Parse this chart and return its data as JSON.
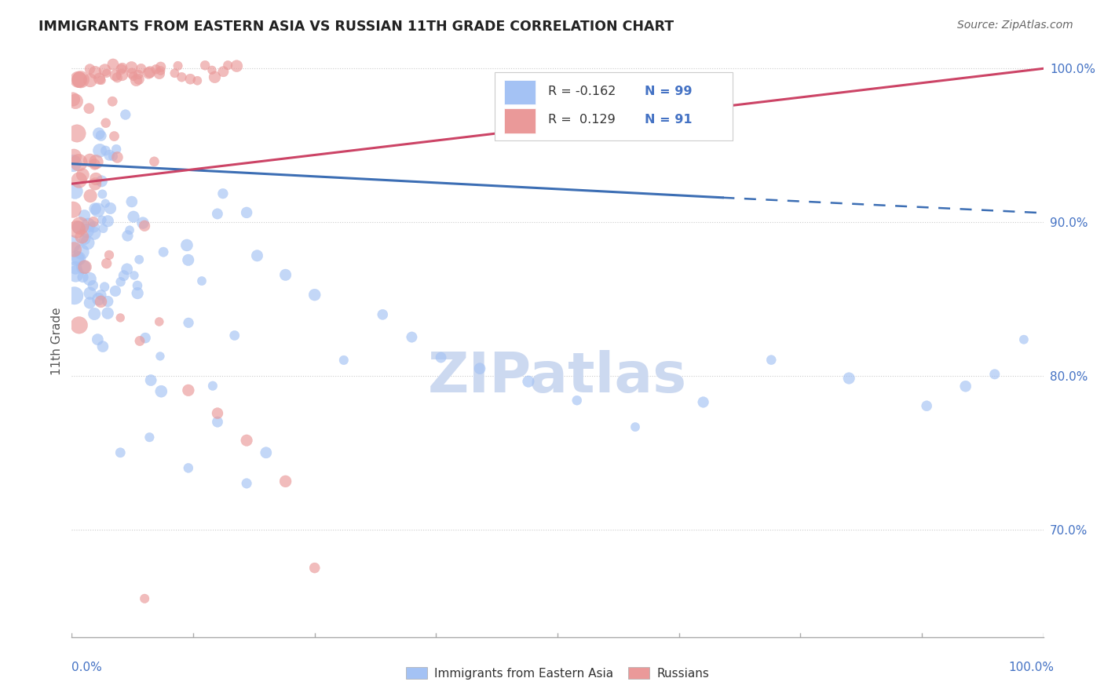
{
  "title": "IMMIGRANTS FROM EASTERN ASIA VS RUSSIAN 11TH GRADE CORRELATION CHART",
  "source": "Source: ZipAtlas.com",
  "ylabel": "11th Grade",
  "legend_r_blue": "-0.162",
  "legend_n_blue": "99",
  "legend_r_pink": "0.129",
  "legend_n_pink": "91",
  "legend_label_blue": "Immigrants from Eastern Asia",
  "legend_label_pink": "Russians",
  "blue_color": "#a4c2f4",
  "pink_color": "#ea9999",
  "blue_line_color": "#3c6eb4",
  "pink_line_color": "#cc4466",
  "blue_line_start_x": 0.0,
  "blue_line_start_y": 93.8,
  "blue_line_end_x": 67.0,
  "blue_line_end_y": 91.6,
  "blue_dash_start_x": 67.0,
  "blue_dash_start_y": 91.6,
  "blue_dash_end_x": 100.0,
  "blue_dash_end_y": 90.6,
  "pink_line_start_x": 0.0,
  "pink_line_start_y": 92.5,
  "pink_line_end_x": 100.0,
  "pink_line_end_y": 100.0,
  "watermark": "ZIPatlas",
  "watermark_color": "#ccd9f0",
  "background_color": "#ffffff",
  "grid_color": "#cccccc",
  "y_tick_values": [
    70.0,
    80.0,
    90.0,
    100.0
  ],
  "y_tick_labels": [
    "70.0%",
    "80.0%",
    "90.0%",
    "100.0%"
  ],
  "y_min": 63.0,
  "y_max": 101.5,
  "x_min": 0.0,
  "x_max": 100.0,
  "tick_color": "#aaaaaa",
  "axis_label_color": "#4472c4",
  "title_color": "#222222",
  "source_color": "#666666",
  "ylabel_color": "#555555"
}
